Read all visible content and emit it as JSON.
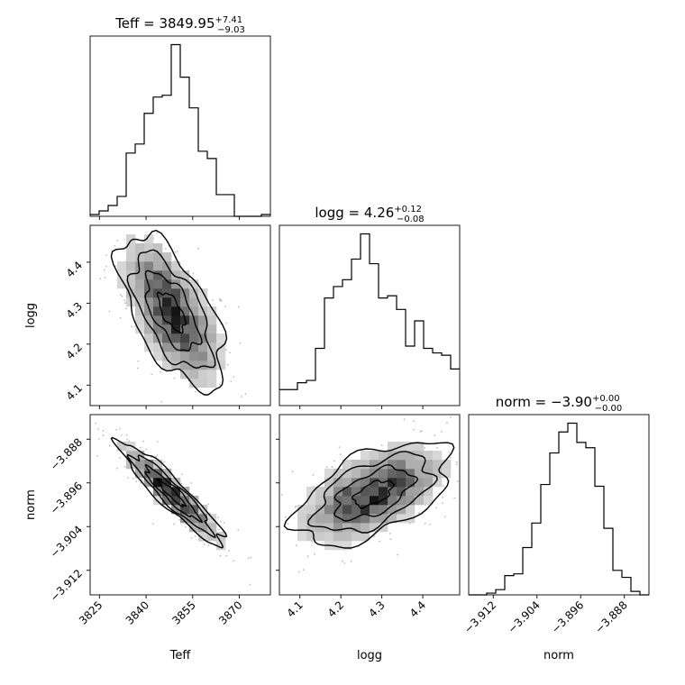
{
  "chart_data": {
    "type": "corner",
    "parameters": [
      "Teff",
      "logg",
      "norm"
    ],
    "titles": [
      {
        "param": "Teff",
        "median": "3849.95",
        "plus": "+7.41",
        "minus": "−9.03"
      },
      {
        "param": "logg",
        "median": "4.26",
        "plus": "+0.12",
        "minus": "−0.08"
      },
      {
        "param": "norm",
        "median": "−3.90",
        "plus": "+0.00",
        "minus": "−0.00"
      }
    ],
    "ranges": {
      "Teff": [
        3822,
        3880
      ],
      "logg": [
        4.05,
        4.49
      ],
      "norm": [
        -3.9165,
        -3.8835
      ]
    },
    "ticks": {
      "Teff": [
        {
          "v": 3825,
          "label": "3825"
        },
        {
          "v": 3840,
          "label": "3840"
        },
        {
          "v": 3855,
          "label": "3855"
        },
        {
          "v": 3870,
          "label": "3870"
        }
      ],
      "logg": [
        {
          "v": 4.1,
          "label": "4.1"
        },
        {
          "v": 4.2,
          "label": "4.2"
        },
        {
          "v": 4.3,
          "label": "4.3"
        },
        {
          "v": 4.4,
          "label": "4.4"
        }
      ],
      "norm": [
        {
          "v": -3.912,
          "label": "−3.912"
        },
        {
          "v": -3.904,
          "label": "−3.904"
        },
        {
          "v": -3.896,
          "label": "−3.896"
        },
        {
          "v": -3.888,
          "label": "−3.888"
        }
      ]
    },
    "histograms": {
      "Teff": [
        1,
        3,
        6,
        11,
        35,
        40,
        57,
        66,
        67,
        95,
        77,
        60,
        36,
        32,
        12,
        12,
        0,
        0,
        0,
        1
      ],
      "logg": [
        7,
        7,
        10,
        11,
        25,
        47,
        52,
        55,
        64,
        75,
        62,
        47,
        48,
        42,
        26,
        37,
        25,
        23,
        22,
        16
      ],
      "norm": [
        0,
        0,
        1,
        3,
        11,
        12,
        27,
        41,
        63,
        81,
        93,
        98,
        87,
        84,
        62,
        38,
        14,
        10,
        2,
        0
      ]
    },
    "correlations": {
      "Teff-logg": -0.62,
      "Teff-norm": -0.93,
      "logg-norm": 0.55
    },
    "title_format": "{param} = {median}^{+plus}_{minus}"
  }
}
